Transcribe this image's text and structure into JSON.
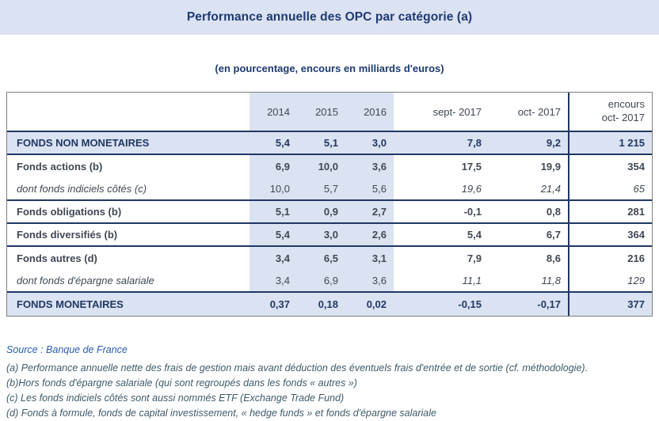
{
  "title": "Performance annuelle des OPC par catégorie (a)",
  "subtitle": "(en pourcentage, encours en milliards d'euros)",
  "colors": {
    "band_blue": "#dbe2f1",
    "navy": "#1f3864",
    "title_navy": "#1e3a72",
    "text_dark": "#404854",
    "source_blue": "#2a5caa",
    "note_slate": "#3f5a6b"
  },
  "table": {
    "columns": [
      "2014",
      "2015",
      "2016",
      "sept- 2017",
      "oct- 2017"
    ],
    "encours_header": {
      "line1": "encours",
      "line2": "oct- 2017"
    },
    "rows": [
      {
        "label": "FONDS NON MONETAIRES",
        "style": "section",
        "values": [
          "5,4",
          "5,1",
          "3,0",
          "7,8",
          "9,2",
          "1 215"
        ],
        "separator_below": true
      },
      {
        "label": "Fonds actions (b)",
        "style": "bold",
        "values": [
          "6,9",
          "10,0",
          "3,6",
          "17,5",
          "19,9",
          "354"
        ],
        "separator_below": false
      },
      {
        "label": "dont fonds indiciels côtés (c)",
        "style": "dont",
        "values": [
          "10,0",
          "5,7",
          "5,6",
          "19,6",
          "21,4",
          "65"
        ],
        "separator_below": true
      },
      {
        "label": "Fonds obligations (b)",
        "style": "bold",
        "values": [
          "5,1",
          "0,9",
          "2,7",
          "-0,1",
          "0,8",
          "281"
        ],
        "separator_below": true
      },
      {
        "label": "Fonds diversifiés (b)",
        "style": "bold",
        "values": [
          "5,4",
          "3,0",
          "2,6",
          "5,4",
          "6,7",
          "364"
        ],
        "separator_below": true
      },
      {
        "label": "Fonds autres (d)",
        "style": "bold",
        "values": [
          "3,4",
          "6,5",
          "3,1",
          "7,9",
          "8,6",
          "216"
        ],
        "separator_below": false
      },
      {
        "label": "dont fonds d'épargne salariale",
        "style": "dont",
        "values": [
          "3,4",
          "6,9",
          "3,6",
          "11,1",
          "11,8",
          "129"
        ],
        "separator_below": true
      },
      {
        "label": "FONDS MONETAIRES",
        "style": "section",
        "values": [
          "0,37",
          "0,18",
          "0,02",
          "-0,15",
          "-0,17",
          "377"
        ],
        "separator_below": true
      }
    ]
  },
  "footnotes": {
    "source": "Source : Banque de France",
    "notes": [
      "(a) Performance annuelle nette des frais de gestion mais avant déduction des éventuels frais d'entrée et de sortie (cf. méthodologie).",
      "(b)Hors fonds d'épargne salariale (qui sont regroupés dans les fonds « autres »)",
      "(c) Les fonds indiciels côtés sont aussi nommés ETF (Exchange Trade Fund)",
      "(d) Fonds à formule, fonds de capital investissement, « hedge funds » et fonds d'épargne salariale"
    ]
  }
}
